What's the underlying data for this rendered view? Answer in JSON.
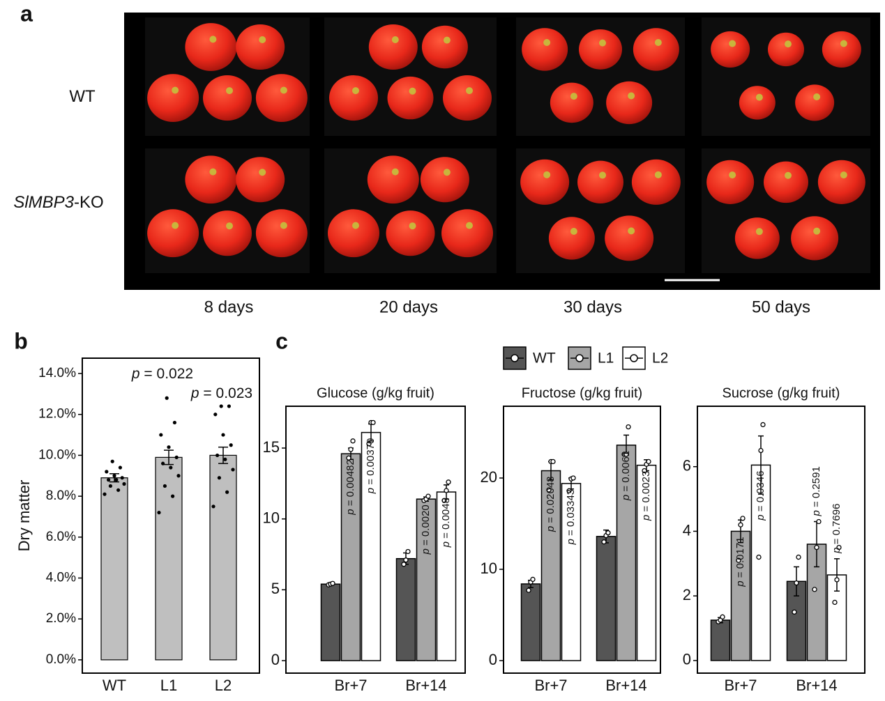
{
  "panel_labels": [
    "a",
    "b",
    "c"
  ],
  "panel_a": {
    "row_labels": [
      {
        "text": "WT"
      },
      {
        "italic": "SlMBP3",
        "text": "-KO"
      }
    ],
    "column_labels": [
      "8 days",
      "20 days",
      "30 days",
      "50 days"
    ]
  },
  "panel_c_legend": [
    {
      "name": "WT",
      "color": "#555555"
    },
    {
      "name": "L1",
      "color": "#a6a6a6"
    },
    {
      "name": "L2",
      "color": "#ffffff"
    }
  ],
  "chart_data": [
    {
      "type": "bar",
      "ylabel": "Dry matter",
      "color": "#bfbfbf",
      "categories": [
        "WT",
        "L1",
        "L2"
      ],
      "values": [
        8.9,
        9.9,
        10.0
      ],
      "errors": [
        0.2,
        0.35,
        0.4
      ],
      "points": [
        [
          8.1,
          8.3,
          8.5,
          8.6,
          8.8,
          8.8,
          8.9,
          9.0,
          9.2,
          9.4,
          9.7
        ],
        [
          7.2,
          8.0,
          8.5,
          9.0,
          9.4,
          9.6,
          9.9,
          10.4,
          11.0,
          11.6,
          12.8
        ],
        [
          7.5,
          8.2,
          8.9,
          9.3,
          9.8,
          10.0,
          10.5,
          11.0,
          12.0,
          12.4,
          12.4
        ]
      ],
      "ylim": [
        -0.65,
        14.75
      ],
      "yticks": [
        {
          "value": 0,
          "label": "0.0%"
        },
        {
          "value": 2,
          "label": "2.0%"
        },
        {
          "value": 4,
          "label": "4.0%"
        },
        {
          "value": 6,
          "label": "6.0%"
        },
        {
          "value": 8,
          "label": "8.0%"
        },
        {
          "value": 10,
          "label": "10.0%"
        },
        {
          "value": 12,
          "label": "12.0%"
        },
        {
          "value": 14,
          "label": "14.0%"
        }
      ],
      "annotations": [
        {
          "italic": "p",
          "text": " = 0.022"
        },
        {
          "italic": "p",
          "text": " = 0.023"
        }
      ]
    },
    {
      "type": "grouped_bar",
      "title": "Glucose (g/kg fruit)",
      "categories": [
        "Br+7",
        "Br+14"
      ],
      "ylim": [
        -0.88,
        17.95
      ],
      "yticks": [
        0,
        5,
        10,
        15
      ],
      "series": [
        {
          "values": [
            5.4,
            7.2
          ],
          "errors": [
            0.1,
            0.4
          ],
          "points": [
            [
              5.35,
              5.4,
              5.45
            ],
            [
              6.8,
              7.1,
              7.7
            ]
          ]
        },
        {
          "values": [
            14.6,
            11.4
          ],
          "errors": [
            0.4,
            0.15
          ],
          "points": [
            [
              14.3,
              14.9,
              15.5
            ],
            [
              11.3,
              11.4,
              11.6
            ]
          ],
          "p_labels": [
            {
              "italic": "p",
              "text": " = 0.00482"
            },
            {
              "italic": "p",
              "text": " = 0.0020"
            }
          ]
        },
        {
          "values": [
            16.1,
            11.9
          ],
          "errors": [
            0.6,
            0.5
          ],
          "points": [
            [
              15.3,
              16.8,
              16.8
            ],
            [
              11.3,
              12.0,
              12.6
            ]
          ],
          "p_labels": [
            {
              "italic": "p",
              "text": " = 0.00370"
            },
            {
              "italic": "p",
              "text": " = 0.0048"
            }
          ]
        }
      ]
    },
    {
      "type": "grouped_bar",
      "title": "Fructose  (g/kg fruit)",
      "categories": [
        "Br+7",
        "Br+14"
      ],
      "ylim": [
        -1.37,
        27.86
      ],
      "yticks": [
        0,
        10,
        20
      ],
      "series": [
        {
          "values": [
            8.4,
            13.6
          ],
          "errors": [
            0.4,
            0.7
          ],
          "points": [
            [
              7.7,
              8.6,
              8.9
            ],
            [
              13.0,
              13.7,
              14.0
            ]
          ]
        },
        {
          "values": [
            20.8,
            23.6
          ],
          "errors": [
            1.0,
            1.1
          ],
          "points": [
            [
              18.7,
              21.8,
              21.8
            ],
            [
              22.6,
              22.6,
              25.6
            ]
          ],
          "p_labels": [
            {
              "italic": "p",
              "text": " = 0.02048"
            },
            {
              "italic": "p",
              "text": " = 0.0061"
            }
          ]
        },
        {
          "values": [
            19.4,
            21.4
          ],
          "errors": [
            0.6,
            0.6
          ],
          "points": [
            [
              18.6,
              19.9,
              20.0
            ],
            [
              20.8,
              21.5,
              21.8
            ]
          ],
          "p_labels": [
            {
              "italic": "p",
              "text": " = 0.03343"
            },
            {
              "italic": "p",
              "text": " = 0.0023"
            }
          ]
        }
      ]
    },
    {
      "type": "grouped_bar",
      "title": "Sucrose (g/kg fruit)",
      "categories": [
        "Br+7",
        "Br+14"
      ],
      "ylim": [
        -0.39,
        7.87
      ],
      "yticks": [
        0,
        2,
        4,
        6
      ],
      "series": [
        {
          "values": [
            1.25,
            2.45
          ],
          "errors": [
            0.08,
            0.45
          ],
          "points": [
            [
              1.2,
              1.25,
              1.35
            ],
            [
              1.5,
              2.4,
              3.2
            ]
          ]
        },
        {
          "values": [
            4.0,
            3.6
          ],
          "errors": [
            0.35,
            0.7
          ],
          "points": [
            [
              3.1,
              4.2,
              4.4
            ],
            [
              2.2,
              3.5,
              4.3
            ]
          ],
          "p_labels": [
            {
              "italic": "p",
              "text": " = 0.0171"
            },
            {
              "italic": "p",
              "text": " = 0.2591"
            }
          ]
        },
        {
          "values": [
            6.05,
            2.65
          ],
          "errors": [
            0.9,
            0.5
          ],
          "points": [
            [
              3.2,
              6.5,
              7.3
            ],
            [
              1.8,
              2.5,
              3.5
            ]
          ],
          "p_labels": [
            {
              "italic": "p",
              "text": " = 0.0346"
            },
            {
              "italic": "p",
              "text": " = 0.7696"
            }
          ]
        }
      ]
    }
  ]
}
